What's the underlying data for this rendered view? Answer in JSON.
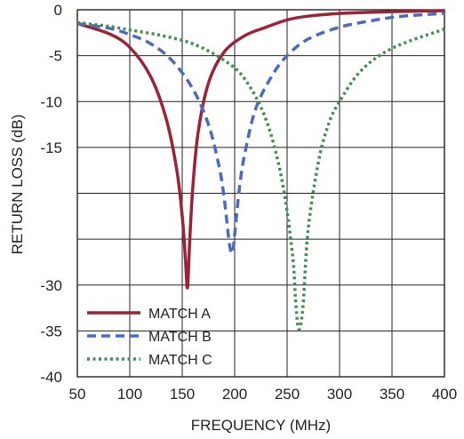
{
  "chart_data": {
    "type": "line",
    "xlabel": "FREQUENCY (MHz)",
    "ylabel": "RETURN LOSS (dB)",
    "xlim": [
      50,
      400
    ],
    "ylim": [
      -40,
      0
    ],
    "x_ticks": [
      50,
      100,
      150,
      200,
      250,
      300,
      350,
      400
    ],
    "y_ticks": [
      0,
      -5,
      -10,
      -15,
      -20,
      -25,
      -30,
      -35,
      -40
    ],
    "y_tick_labels": [
      "0",
      "-5",
      "-10",
      "-15",
      "",
      "",
      "-30",
      "-35",
      "-40"
    ],
    "grid": true,
    "legend_position": "bottom-left",
    "series": [
      {
        "name": "MATCH A",
        "color": "#9b2335",
        "style": "solid",
        "x": [
          50,
          80,
          100,
          120,
          135,
          145,
          150,
          153,
          155,
          157,
          160,
          165,
          175,
          190,
          210,
          230,
          250,
          270,
          300,
          350,
          400
        ],
        "y": [
          -1.5,
          -2.6,
          -4.1,
          -7.3,
          -12,
          -17.6,
          -22.5,
          -27,
          -30.3,
          -25.5,
          -19.5,
          -13.5,
          -8,
          -4.6,
          -2.8,
          -1.9,
          -1.1,
          -0.7,
          -0.4,
          -0.2,
          -0.1
        ]
      },
      {
        "name": "MATCH B",
        "color": "#4a6bbf",
        "style": "dashed",
        "x": [
          50,
          80,
          100,
          120,
          140,
          160,
          175,
          185,
          190,
          195,
          198,
          200,
          205,
          210,
          220,
          235,
          250,
          270,
          300,
          330,
          360,
          400
        ],
        "y": [
          -1.5,
          -2,
          -2.7,
          -3.7,
          -5.5,
          -8.6,
          -12.5,
          -17,
          -20.5,
          -25.5,
          -26.5,
          -24.5,
          -19,
          -15.5,
          -10.8,
          -7.3,
          -5,
          -3.2,
          -1.9,
          -1.2,
          -0.7,
          -0.4
        ]
      },
      {
        "name": "MATCH C",
        "color": "#3c8f4e",
        "style": "dotted",
        "x": [
          50,
          80,
          100,
          130,
          160,
          190,
          210,
          230,
          245,
          255,
          258,
          261,
          265,
          270,
          280,
          290,
          300,
          320,
          350,
          400
        ],
        "y": [
          -1.4,
          -1.8,
          -2.2,
          -2.8,
          -3.7,
          -5.5,
          -7.6,
          -12,
          -18.5,
          -26.5,
          -31.5,
          -34.8,
          -32.5,
          -24,
          -16.5,
          -12.3,
          -10,
          -6.7,
          -4.2,
          -2.1
        ]
      }
    ]
  }
}
